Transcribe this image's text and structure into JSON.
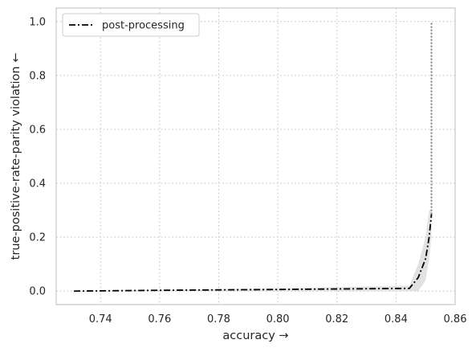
{
  "chart_data": {
    "type": "line",
    "xlabel": "accuracy →",
    "ylabel": "true-positive-rate-parity violation ←",
    "xlim": [
      0.725,
      0.86
    ],
    "ylim": [
      -0.05,
      1.05
    ],
    "xticks": [
      0.74,
      0.76,
      0.78,
      0.8,
      0.82,
      0.84,
      0.86
    ],
    "xtick_labels": [
      "0.74",
      "0.76",
      "0.78",
      "0.80",
      "0.82",
      "0.84",
      "0.86"
    ],
    "yticks": [
      0.0,
      0.2,
      0.4,
      0.6,
      0.8,
      1.0
    ],
    "ytick_labels": [
      "0.0",
      "0.2",
      "0.4",
      "0.6",
      "0.8",
      "1.0"
    ],
    "grid": true,
    "legend_position": "top-left",
    "series": [
      {
        "name": "post-processing",
        "color": "#000000",
        "line_style": "dash-dot",
        "x": [
          0.731,
          0.76,
          0.8,
          0.82,
          0.8445,
          0.8475,
          0.85,
          0.8512,
          0.852
        ],
        "y": [
          0.0,
          0.003,
          0.006,
          0.008,
          0.01,
          0.05,
          0.12,
          0.2,
          0.285
        ],
        "band_lower": [
          0.0,
          0.0,
          0.0,
          0.0,
          0.0,
          0.0,
          0.04,
          0.12,
          0.2
        ],
        "band_upper": [
          0.0,
          0.005,
          0.01,
          0.015,
          0.02,
          0.1,
          0.2,
          0.3,
          0.3
        ]
      }
    ],
    "reference_line": {
      "style": "dotted",
      "color": "#808080",
      "x": 0.852,
      "y_from": 0.285,
      "y_to": 1.0
    }
  }
}
